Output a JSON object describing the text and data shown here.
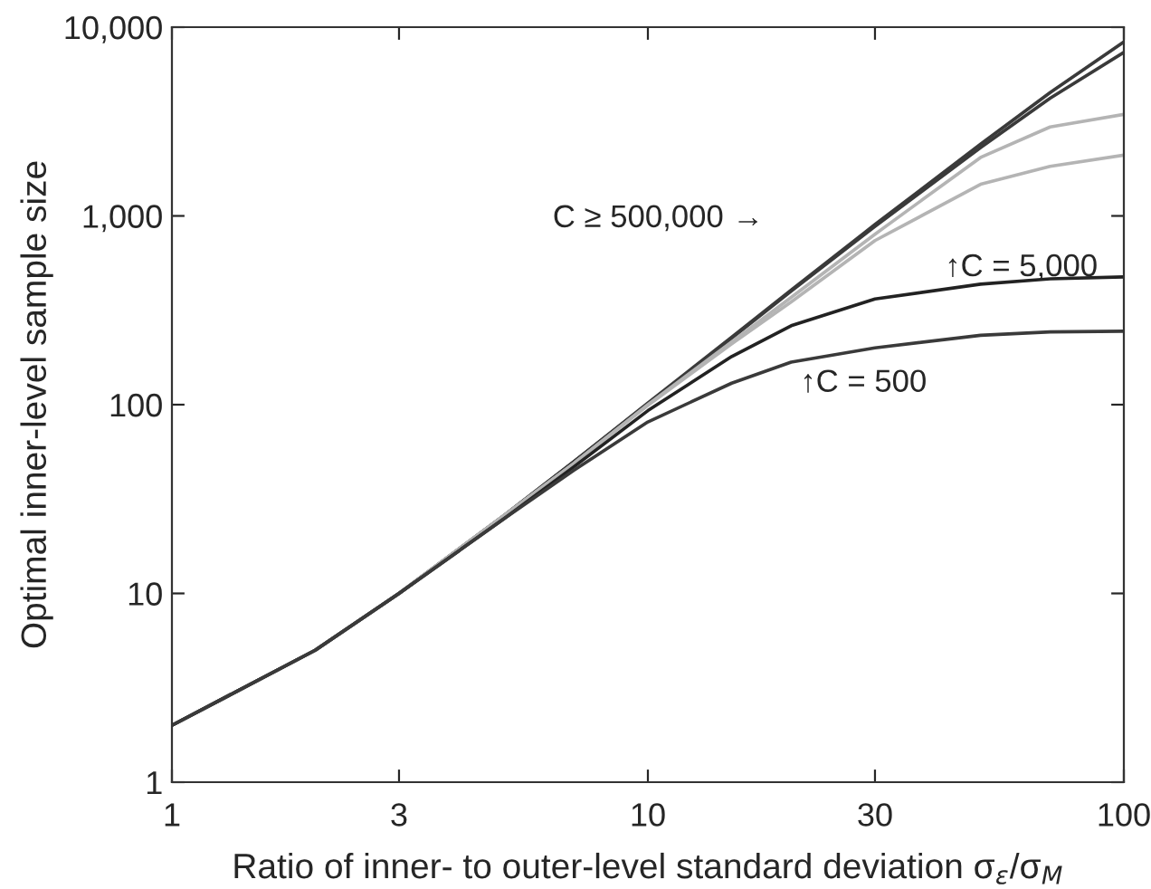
{
  "chart_data": {
    "type": "line",
    "xlabel": "Ratio of inner- to outer-level standard deviation σ$_{ε}$/σ$_{M}$",
    "ylabel": "Optimal inner-level sample size",
    "x": [
      1,
      2,
      3,
      5,
      7,
      10,
      15,
      20,
      30,
      50,
      70,
      100
    ],
    "series": [
      {
        "color": "#3a3a3a",
        "values": [
          2,
          5,
          10,
          26,
          50,
          102,
          228,
          405,
          900,
          2400,
          4500,
          8350
        ]
      },
      {
        "color": "#3a3a3a",
        "values": [
          2,
          5,
          10,
          26,
          50,
          101,
          225,
          400,
          880,
          2300,
          4200,
          7350
        ]
      },
      {
        "color": "#b4b4b4",
        "values": [
          2,
          5,
          10,
          26,
          49,
          100,
          215,
          370,
          800,
          2040,
          2960,
          3450
        ]
      },
      {
        "color": "#b4b4b4",
        "values": [
          2,
          5,
          10,
          26,
          49,
          99,
          210,
          350,
          740,
          1470,
          1830,
          2100
        ]
      },
      {
        "color": "#222222",
        "values": [
          2,
          5,
          10,
          25,
          47,
          93,
          180,
          262,
          363,
          435,
          464,
          475
        ]
      },
      {
        "color": "#3a3a3a",
        "values": [
          2,
          5,
          10,
          25,
          45,
          81,
          130,
          168,
          200,
          233,
          243,
          245
        ]
      }
    ],
    "annotations": [
      "C ≥ 500,000 →",
      "↑C = 5,000",
      "↑C = 500"
    ],
    "log": "xy",
    "xlim": [
      1,
      100
    ],
    "xticks": [
      1,
      3,
      10,
      30,
      100
    ],
    "ylim": [
      1,
      10000
    ],
    "yticks": [
      1,
      10,
      100,
      {
        "value": 1000,
        "label": "1,000"
      },
      {
        "value": 10000,
        "label": "10,000"
      }
    ],
    "grid": false,
    "legend": false,
    "marker": "none",
    "line_style": "solid"
  }
}
